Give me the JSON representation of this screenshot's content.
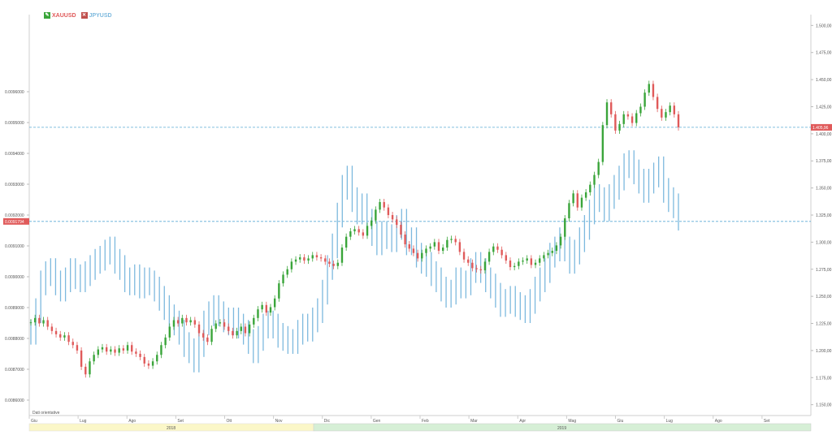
{
  "legend": {
    "series1": "XAUUSD",
    "series2": "JPYUSD"
  },
  "colors": {
    "up": "#3aa53a",
    "down": "#e05a5a",
    "jpy": "#7db9de",
    "refline": "#5aaad6",
    "yearbar1": "#fbf7c8",
    "yearbar2": "#d6efd6",
    "tag": "#e05a5a"
  },
  "footer": {
    "powered": "Dati orientative",
    "year1": "2018",
    "year2": "2019"
  },
  "chart_data": {
    "type": "line",
    "xlabel": "",
    "left_axis": {
      "ticks": [
        "0.0096000",
        "0.0095000",
        "0.0094000",
        "0.0093000",
        "0.0092000",
        "0.0091000",
        "0.0090000",
        "0.0089000",
        "0.0088000",
        "0.0087000",
        "0.0086000"
      ],
      "range": [
        0.00855,
        0.00985
      ],
      "current_tag": "0.0091794"
    },
    "right_axis": {
      "ticks": [
        "1.500,00",
        "1.475,00",
        "1.450,00",
        "1.425,00",
        "1.400,00",
        "1.375,00",
        "1.350,00",
        "1.325,00",
        "1.300,00",
        "1.275,00",
        "1.250,00",
        "1.225,00",
        "1.200,00",
        "1.175,00",
        "1.150,00"
      ],
      "range": [
        1140,
        1510
      ],
      "current_tag": "1.405,96"
    },
    "x_ticks": [
      "Giu",
      "Lug",
      "Ago",
      "Set",
      "Ott",
      "Nov",
      "Dic",
      "Gen",
      "Feb",
      "Mar",
      "Apr",
      "Mag",
      "Giu",
      "Lug",
      "Ago",
      "Set"
    ],
    "series": [
      {
        "name": "XAUUSD",
        "axis": "right",
        "style": "candlestick",
        "values": [
          1226,
          1230,
          1225,
          1228,
          1222,
          1218,
          1215,
          1212,
          1214,
          1208,
          1205,
          1200,
          1185,
          1178,
          1190,
          1196,
          1201,
          1203,
          1199,
          1201,
          1198,
          1202,
          1200,
          1205,
          1199,
          1197,
          1194,
          1188,
          1186,
          1190,
          1196,
          1205,
          1212,
          1222,
          1228,
          1225,
          1230,
          1226,
          1228,
          1224,
          1216,
          1212,
          1208,
          1220,
          1225,
          1226,
          1222,
          1218,
          1214,
          1218,
          1222,
          1216,
          1224,
          1230,
          1238,
          1242,
          1235,
          1240,
          1248,
          1262,
          1270,
          1275,
          1282,
          1284,
          1286,
          1283,
          1285,
          1288,
          1286,
          1285,
          1282,
          1280,
          1278,
          1281,
          1295,
          1305,
          1310,
          1312,
          1309,
          1306,
          1315,
          1320,
          1330,
          1337,
          1332,
          1325,
          1321,
          1316,
          1307,
          1298,
          1294,
          1290,
          1285,
          1290,
          1294,
          1296,
          1300,
          1292,
          1295,
          1302,
          1303,
          1300,
          1291,
          1284,
          1281,
          1276,
          1275,
          1274,
          1282,
          1291,
          1296,
          1293,
          1288,
          1283,
          1277,
          1278,
          1282,
          1283,
          1285,
          1279,
          1281,
          1285,
          1288,
          1290,
          1292,
          1297,
          1305,
          1322,
          1336,
          1345,
          1332,
          1341,
          1346,
          1353,
          1362,
          1374,
          1408,
          1429,
          1418,
          1403,
          1409,
          1418,
          1416,
          1410,
          1419,
          1425,
          1438,
          1446,
          1434,
          1423,
          1415,
          1420,
          1426,
          1418,
          1406
        ]
      },
      {
        "name": "JPYUSD",
        "axis": "left",
        "style": "bars",
        "values": [
          0.00882,
          0.00889,
          0.00898,
          0.00901,
          0.00902,
          0.00898,
          0.00896,
          0.00899,
          0.00902,
          0.009,
          0.00899,
          0.00901,
          0.00903,
          0.00905,
          0.00906,
          0.00908,
          0.00909,
          0.00905,
          0.00903,
          0.00899,
          0.00898,
          0.009,
          0.00897,
          0.00899,
          0.00898,
          0.00896,
          0.00893,
          0.0089,
          0.00887,
          0.00885,
          0.00882,
          0.00878,
          0.00876,
          0.00873,
          0.00878,
          0.00885,
          0.00888,
          0.0089,
          0.00888,
          0.00886,
          0.00885,
          0.00886,
          0.00884,
          0.00882,
          0.00879,
          0.00876,
          0.0088,
          0.00884,
          0.00885,
          0.00884,
          0.00881,
          0.0088,
          0.00879,
          0.00879,
          0.00882,
          0.00884,
          0.00883,
          0.00886,
          0.00889,
          0.00895,
          0.00903,
          0.0091,
          0.0092,
          0.00929,
          0.00932,
          0.00925,
          0.00921,
          0.00923,
          0.00918,
          0.00914,
          0.00911,
          0.00914,
          0.00913,
          0.00912,
          0.00916,
          0.00918,
          0.00911,
          0.00912,
          0.00907,
          0.00905,
          0.00904,
          0.00901,
          0.00899,
          0.00896,
          0.00894,
          0.00895,
          0.00899,
          0.00897,
          0.00898,
          0.00902,
          0.00904,
          0.00902,
          0.00899,
          0.00897,
          0.00894,
          0.00891,
          0.00892,
          0.00893,
          0.00891,
          0.0089,
          0.00889,
          0.00892,
          0.00896,
          0.00899,
          0.00902,
          0.00907,
          0.00909,
          0.00912,
          0.00909,
          0.00905,
          0.00908,
          0.00912,
          0.00916,
          0.00921,
          0.00926,
          0.00925,
          0.00922,
          0.00926,
          0.00929,
          0.00932,
          0.00936,
          0.00937,
          0.00934,
          0.00931,
          0.00928,
          0.00931,
          0.00933,
          0.00935,
          0.00928,
          0.00925,
          0.00923,
          0.00919
        ]
      }
    ],
    "reference_lines": [
      {
        "axis": "right",
        "value": 1405.96
      },
      {
        "axis": "left",
        "value": 0.0091794
      }
    ]
  }
}
